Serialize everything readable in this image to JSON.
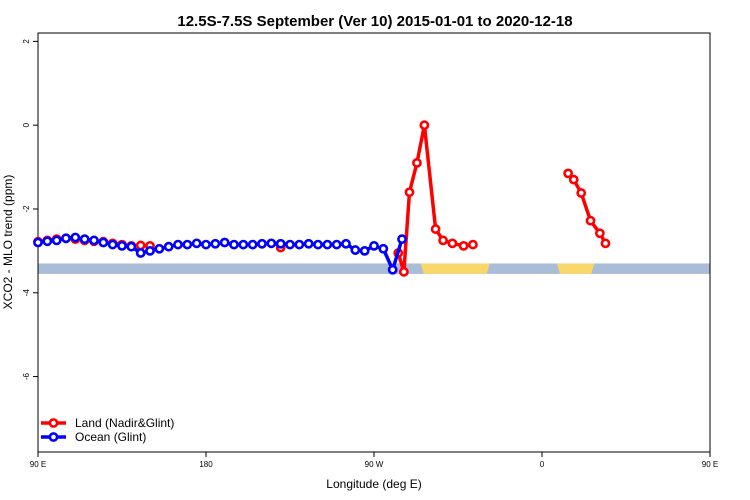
{
  "chart_data": {
    "type": "line",
    "title": "12.5S-7.5S September (Ver 10)   2015-01-01 to 2020-12-18",
    "xlabel": "Longitude (deg E)",
    "ylabel": "XCO2 - MLO trend (ppm)",
    "xlim": [
      90,
      450
    ],
    "ylim": [
      -7.8,
      2.2
    ],
    "x_ticks": [
      {
        "value": 90,
        "label": "90 E"
      },
      {
        "value": 180,
        "label": "180"
      },
      {
        "value": 270,
        "label": "90 W"
      },
      {
        "value": 360,
        "label": "0"
      },
      {
        "value": 450,
        "label": "90 E"
      },
      {
        "value": 540,
        "label": "180"
      }
    ],
    "y_ticks": [
      {
        "value": 2,
        "label": "2"
      },
      {
        "value": 0,
        "label": "0"
      },
      {
        "value": -2,
        "label": "-2"
      },
      {
        "value": -4,
        "label": "-4"
      },
      {
        "value": -6,
        "label": "-6"
      }
    ],
    "legend_position": "bottom-left",
    "grid": false,
    "colors": {
      "land": "#ff0000",
      "ocean": "#0000ff",
      "ocean_band": "#a9bcd8",
      "land_band": "#f9d76a"
    },
    "series": [
      {
        "name": "Land (Nadir&Glint)",
        "color": "#ff0000",
        "segments": [
          {
            "x": [
              90,
              95,
              100,
              105,
              110,
              115,
              120,
              125,
              130,
              135,
              140,
              145,
              150
            ],
            "y": [
              -2.78,
              -2.75,
              -2.72,
              -2.7,
              -2.72,
              -2.75,
              -2.77,
              -2.78,
              -2.82,
              -2.85,
              -2.88,
              -2.87,
              -2.88
            ]
          },
          {
            "x": [
              220
            ],
            "y": [
              -2.92
            ]
          },
          {
            "x": [
              283,
              286,
              289,
              293,
              297,
              303,
              307,
              312,
              318,
              323
            ],
            "y": [
              -3.05,
              -3.5,
              -1.6,
              -0.9,
              0.0,
              -2.48,
              -2.75,
              -2.82,
              -2.88,
              -2.85
            ]
          },
          {
            "x": [
              374,
              377,
              381,
              386,
              391,
              394
            ],
            "y": [
              -1.15,
              -1.3,
              -1.62,
              -2.28,
              -2.58,
              -2.82
            ]
          },
          {
            "x": [
              533,
              540,
              545
            ],
            "y": [
              -2.82,
              -2.75,
              -2.78
            ]
          },
          {
            "x": [
              555,
              560,
              565,
              570
            ],
            "y": [
              -2.8,
              -2.82,
              -2.87,
              -2.9
            ]
          }
        ]
      },
      {
        "name": "Ocean (Glint)",
        "color": "#0000ff",
        "segments": [
          {
            "x": [
              90,
              95,
              100,
              105,
              110,
              115,
              120,
              125,
              130,
              135,
              140,
              145,
              150,
              155,
              160,
              165,
              170,
              175,
              180,
              185,
              190,
              195,
              200,
              205,
              210,
              215,
              220,
              225,
              230,
              235,
              240,
              245,
              250,
              255,
              260,
              265,
              270,
              275,
              280,
              285
            ],
            "y": [
              -2.8,
              -2.77,
              -2.75,
              -2.7,
              -2.68,
              -2.72,
              -2.75,
              -2.8,
              -2.85,
              -2.88,
              -2.9,
              -3.05,
              -3.0,
              -2.95,
              -2.9,
              -2.85,
              -2.85,
              -2.82,
              -2.85,
              -2.83,
              -2.8,
              -2.85,
              -2.85,
              -2.85,
              -2.83,
              -2.82,
              -2.83,
              -2.85,
              -2.85,
              -2.83,
              -2.85,
              -2.85,
              -2.85,
              -2.83,
              -2.98,
              -3.0,
              -2.88,
              -2.95,
              -3.45,
              -2.72
            ]
          }
        ]
      }
    ]
  }
}
